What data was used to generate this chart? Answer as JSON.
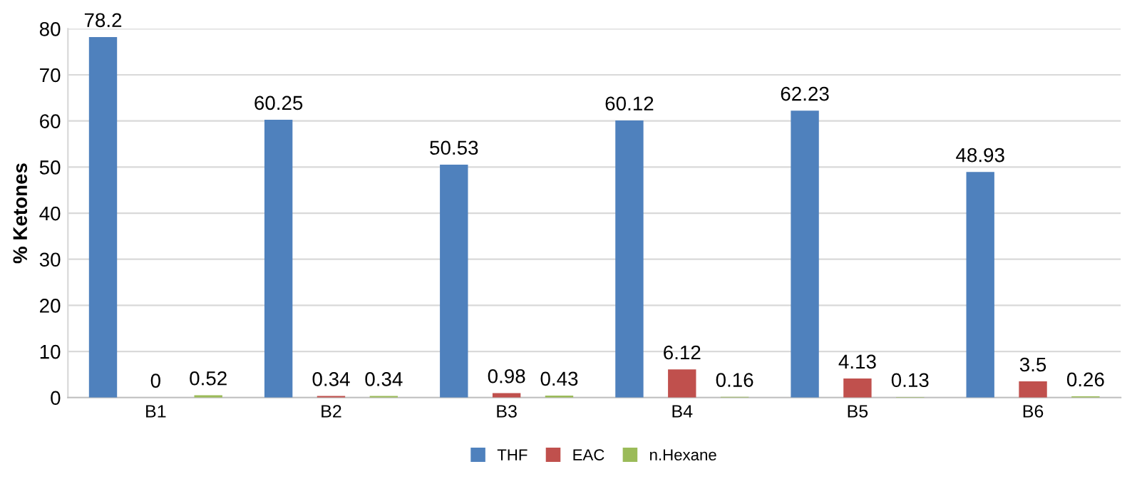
{
  "chart_data": {
    "type": "bar",
    "ylabel": "% Ketones",
    "categories": [
      "B1",
      "B2",
      "B3",
      "B4",
      "B5",
      "B6"
    ],
    "series": [
      {
        "name": "THF",
        "color": "#4f81bd",
        "values": [
          78.2,
          60.25,
          50.53,
          60.12,
          62.23,
          48.93
        ]
      },
      {
        "name": "EAC",
        "color": "#c0504d",
        "values": [
          0,
          0.34,
          0.98,
          6.12,
          4.13,
          3.5
        ]
      },
      {
        "name": "n.Hexane",
        "color": "#9bbb59",
        "values": [
          0.52,
          0.34,
          0.43,
          0.16,
          0.13,
          0.26
        ]
      }
    ],
    "ylim": [
      0,
      80
    ],
    "yticks": [
      0,
      10,
      20,
      30,
      40,
      50,
      60,
      70,
      80
    ],
    "grid": "y",
    "legend": "bottom",
    "data_labels": true
  }
}
